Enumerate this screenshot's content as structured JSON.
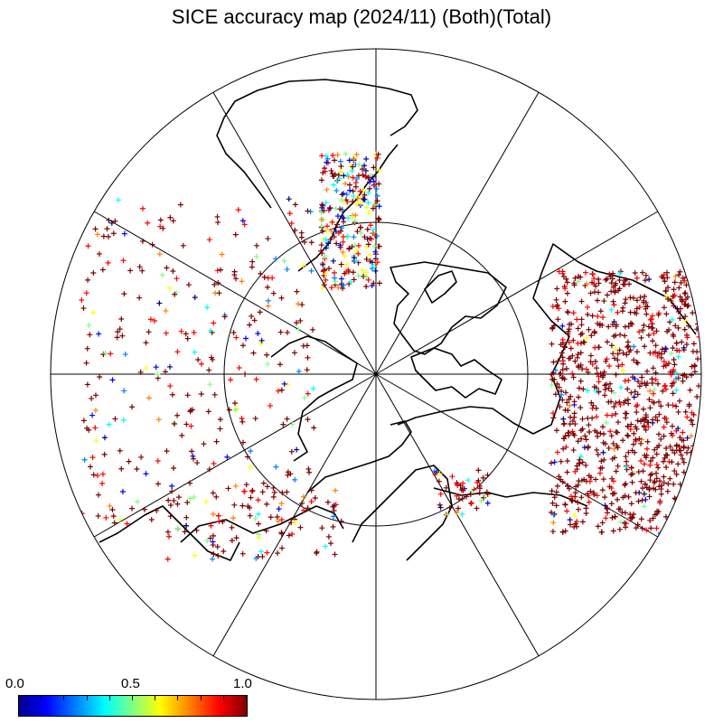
{
  "title": "SICE accuracy map (2024/11) (Both)(Total)",
  "colorbar": {
    "labels": [
      "0.0",
      "0.5",
      "1.0"
    ],
    "min": 0.0,
    "max": 1.0,
    "colors": [
      "#00008f",
      "#0000ff",
      "#0080ff",
      "#00ffff",
      "#80ff80",
      "#ffff00",
      "#ff8000",
      "#ff0000",
      "#800000"
    ]
  },
  "map": {
    "projection": "polar-stereographic-north",
    "meridian_lines": 12,
    "latitude_circle": true,
    "dominant_marker_color": "#8b0000"
  }
}
